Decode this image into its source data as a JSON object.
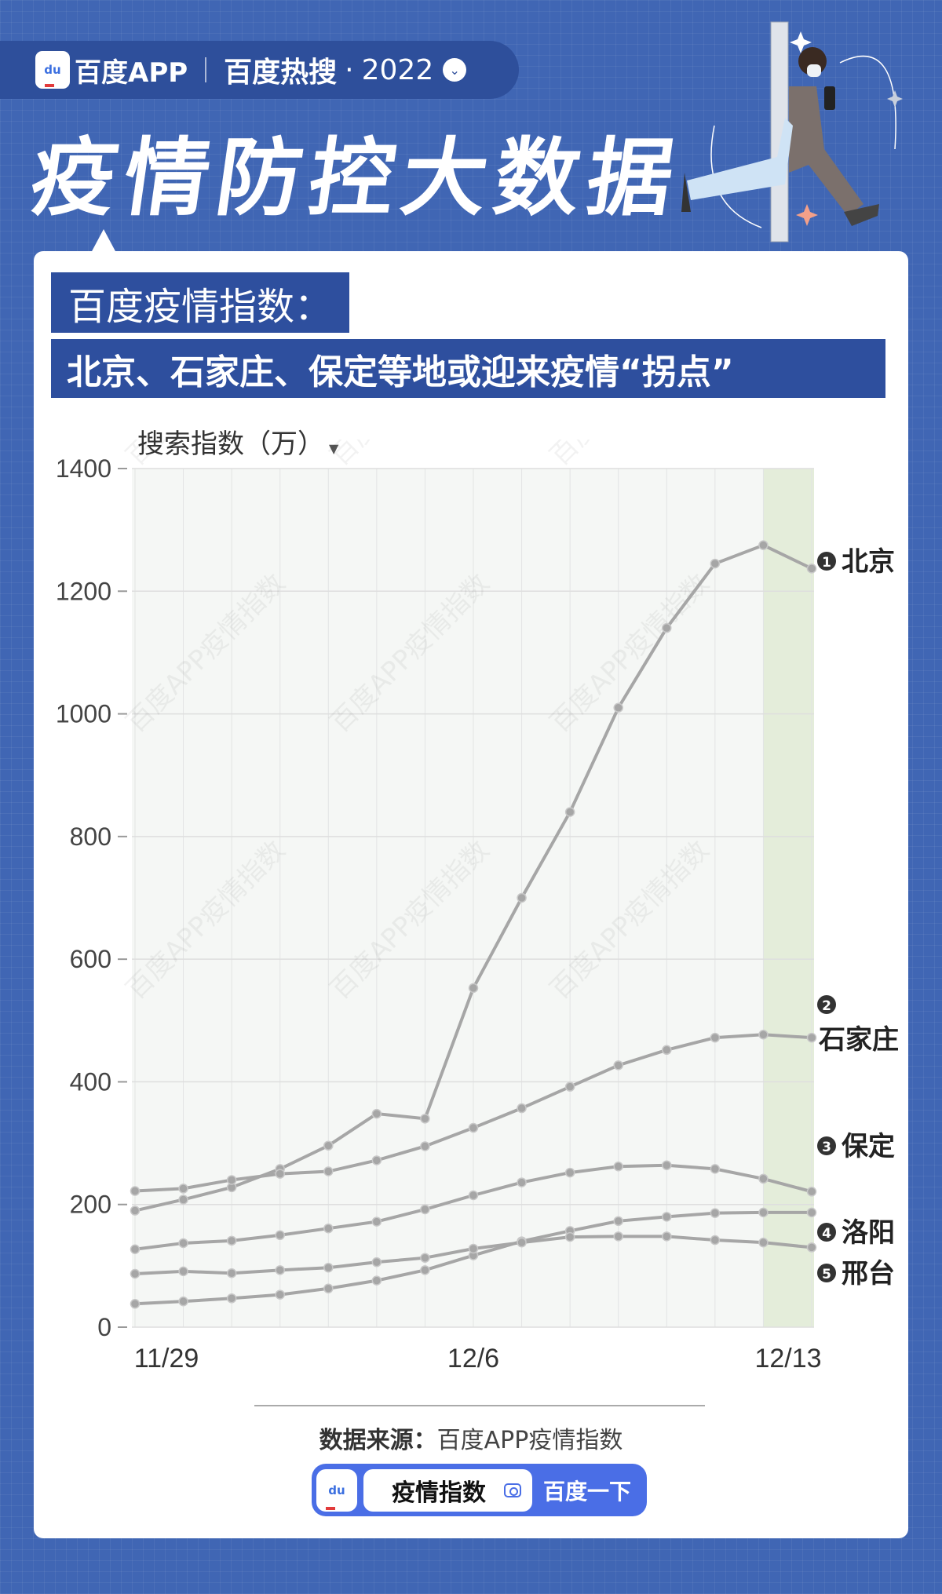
{
  "header": {
    "brand": "百度APP",
    "section": "百度热搜",
    "dot": "·",
    "year": "2022",
    "logo_text": "du"
  },
  "title": "疫情防控大数据",
  "subtitle1": "百度疫情指数：",
  "subtitle2": "北京、石家庄、保定等地或迎来疫情“拐点”",
  "colors": {
    "background": "#4066b4",
    "banner": "#2e4f9e",
    "highlight": "#e4edda",
    "line": "#a6a6a6",
    "search": "#4a6ee6"
  },
  "chart_data": {
    "type": "line",
    "ylabel": "搜索指数（万）",
    "ylim": [
      0,
      1400
    ],
    "yticks": [
      0,
      200,
      400,
      600,
      800,
      1000,
      1200,
      1400
    ],
    "x": [
      "11/29",
      "11/30",
      "12/1",
      "12/2",
      "12/3",
      "12/4",
      "12/5",
      "12/6",
      "12/7",
      "12/8",
      "12/9",
      "12/10",
      "12/11",
      "12/12",
      "12/13"
    ],
    "xtick_labels": [
      "11/29",
      "12/6",
      "12/13"
    ],
    "highlight_range": [
      "12/12",
      "12/13"
    ],
    "grid": true,
    "series": [
      {
        "name": "北京",
        "rank": "1",
        "values": [
          190,
          208,
          228,
          258,
          296,
          348,
          340,
          553,
          700,
          840,
          1010,
          1140,
          1245,
          1275,
          1237
        ]
      },
      {
        "name": "石家庄",
        "rank": "2",
        "values": [
          222,
          226,
          240,
          250,
          254,
          272,
          295,
          325,
          357,
          392,
          427,
          452,
          472,
          477,
          472
        ]
      },
      {
        "name": "保定",
        "rank": "3",
        "values": [
          127,
          137,
          141,
          150,
          161,
          172,
          192,
          215,
          236,
          252,
          262,
          264,
          258,
          242,
          221
        ]
      },
      {
        "name": "洛阳",
        "rank": "4",
        "values": [
          38,
          42,
          47,
          53,
          63,
          76,
          93,
          117,
          140,
          157,
          173,
          180,
          186,
          187,
          187
        ]
      },
      {
        "name": "邢台",
        "rank": "5",
        "values": [
          87,
          91,
          88,
          93,
          97,
          106,
          113,
          128,
          138,
          147,
          148,
          148,
          142,
          138,
          130
        ]
      }
    ]
  },
  "watermark": "百度APP疫情指数",
  "footer": {
    "source_label": "数据来源：",
    "source": "百度APP疫情指数",
    "search_query": "疫情指数",
    "search_button": "百度一下"
  }
}
